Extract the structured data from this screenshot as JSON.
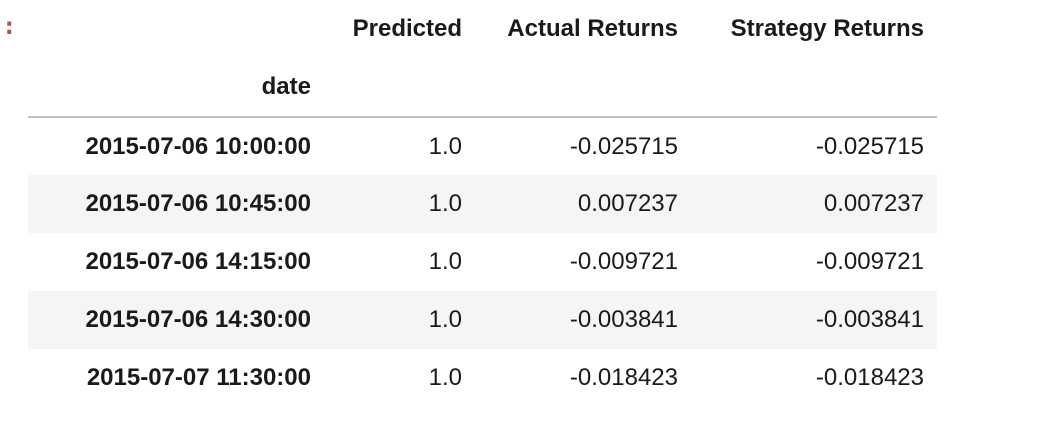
{
  "prompt_marker": ":",
  "table": {
    "columns": [
      "Predicted",
      "Actual Returns",
      "Strategy Returns"
    ],
    "index_name": "date",
    "rows": [
      {
        "date": "2015-07-06 10:00:00",
        "predicted": "1.0",
        "actual_returns": "-0.025715",
        "strategy_returns": "-0.025715"
      },
      {
        "date": "2015-07-06 10:45:00",
        "predicted": "1.0",
        "actual_returns": "0.007237",
        "strategy_returns": "0.007237"
      },
      {
        "date": "2015-07-06 14:15:00",
        "predicted": "1.0",
        "actual_returns": "-0.009721",
        "strategy_returns": "-0.009721"
      },
      {
        "date": "2015-07-06 14:30:00",
        "predicted": "1.0",
        "actual_returns": "-0.003841",
        "strategy_returns": "-0.003841"
      },
      {
        "date": "2015-07-07 11:30:00",
        "predicted": "1.0",
        "actual_returns": "-0.018423",
        "strategy_returns": "-0.018423"
      }
    ]
  }
}
